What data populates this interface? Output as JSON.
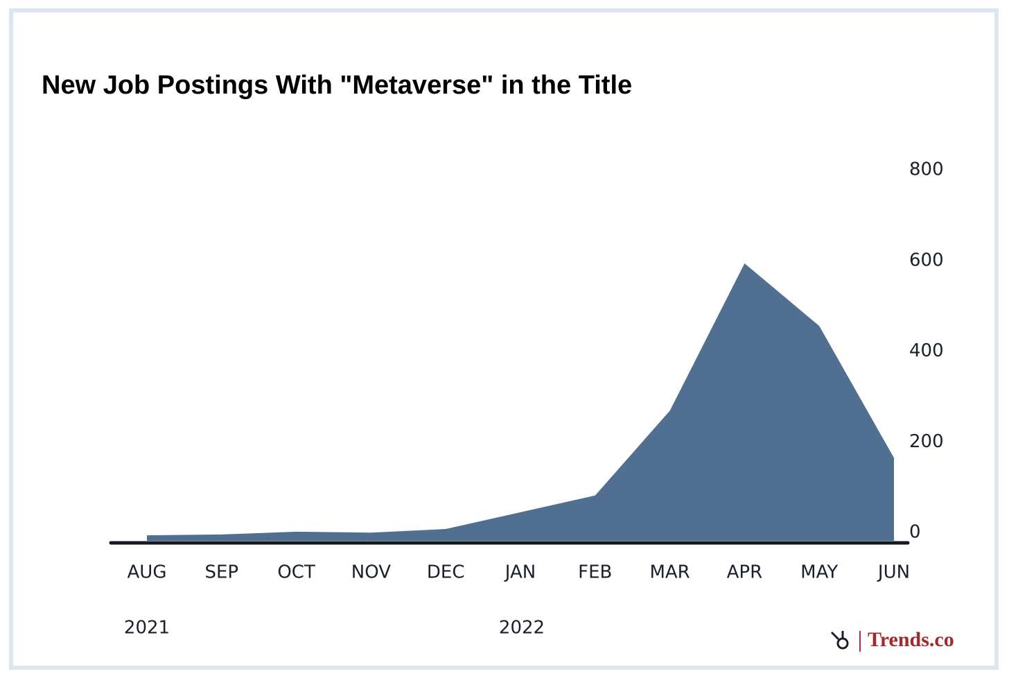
{
  "chart_data": {
    "type": "area",
    "title": "New Job Postings With \"Metaverse\" in the Title",
    "categories": [
      "AUG",
      "SEP",
      "OCT",
      "NOV",
      "DEC",
      "JAN",
      "FEB",
      "MAR",
      "APR",
      "MAY",
      "JUN"
    ],
    "values": [
      12,
      14,
      20,
      18,
      26,
      63,
      100,
      287,
      612,
      474,
      183
    ],
    "color": "#516f91",
    "ylim": [
      0,
      800
    ],
    "yticks": [
      0,
      200,
      400,
      600,
      800
    ],
    "year_labels": [
      "2021",
      "2022"
    ],
    "brand": "Trends.co"
  }
}
